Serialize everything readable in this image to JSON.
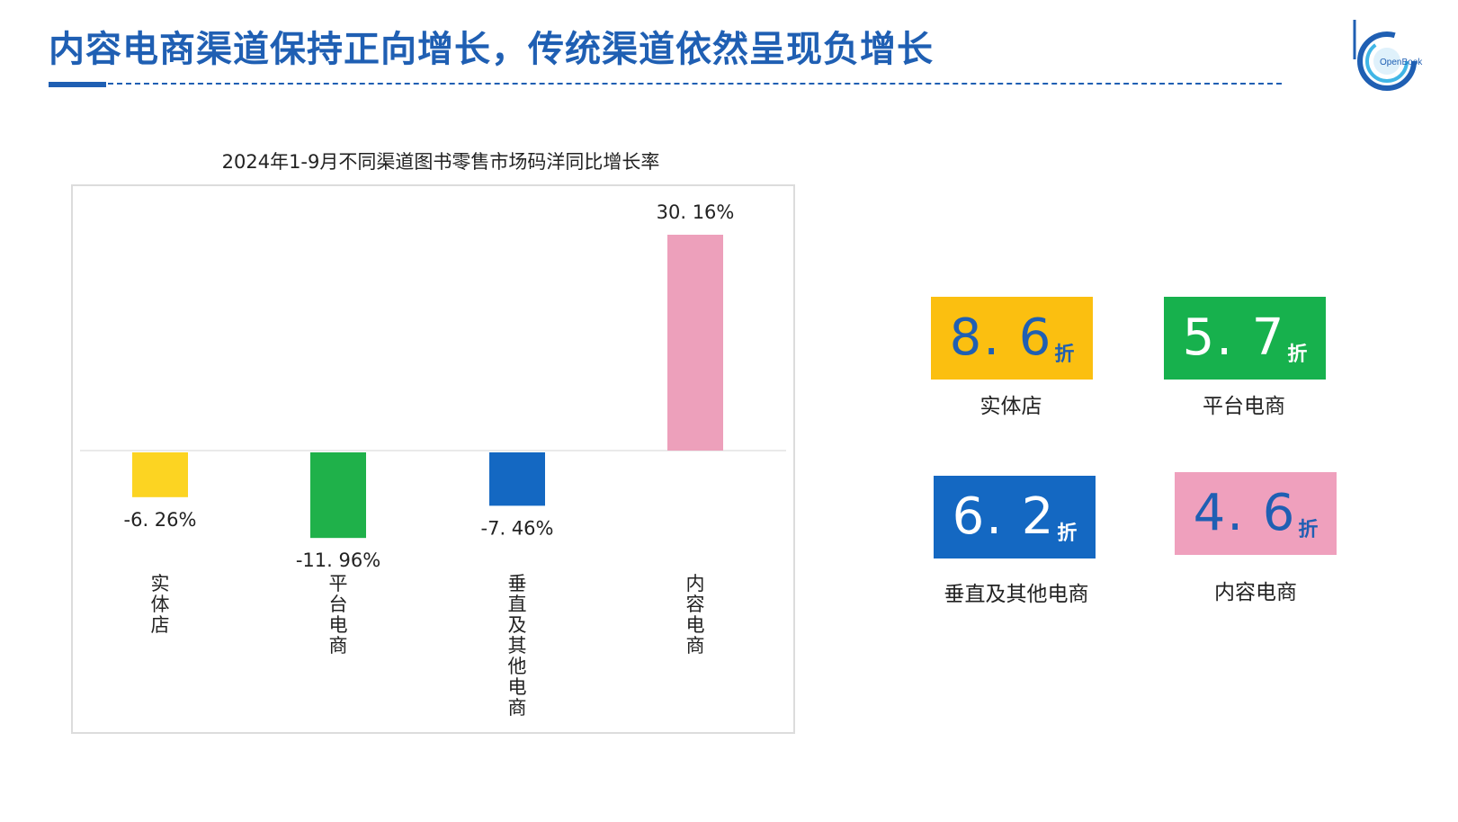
{
  "header": {
    "title": "内容电商渠道保持正向增长，传统渠道依然呈现负增长",
    "logo_text": "OpenBook"
  },
  "chart_data": {
    "type": "bar",
    "title": "2024年1-9月不同渠道图书零售市场码洋同比增长率",
    "categories": [
      "实体店",
      "平台电商",
      "垂直及其他电商",
      "内容电商"
    ],
    "values": [
      -6.26,
      -11.96,
      -7.46,
      30.16
    ],
    "value_labels": [
      "-6. 26%",
      "-11. 96%",
      "-7. 46%",
      "30. 16%"
    ],
    "colors": [
      "#fcd422",
      "#1fb14a",
      "#1468c2",
      "#eda0bb"
    ],
    "ylim": [
      -13,
      33
    ],
    "grid": false,
    "xlabel": "",
    "ylabel": ""
  },
  "discount_cards": [
    {
      "value": "8. 6",
      "unit": "折",
      "label": "实体店",
      "bg": "#fbbf10",
      "fg": "#1f5fb3"
    },
    {
      "value": "5. 7",
      "unit": "折",
      "label": "平台电商",
      "bg": "#17b14d",
      "fg": "#ffffff"
    },
    {
      "value": "6. 2",
      "unit": "折",
      "label": "垂直及其他电商",
      "bg": "#1468c2",
      "fg": "#ffffff"
    },
    {
      "value": "4. 6",
      "unit": "折",
      "label": "内容电商",
      "bg": "#efa0bd",
      "fg": "#1f5fb3"
    }
  ]
}
